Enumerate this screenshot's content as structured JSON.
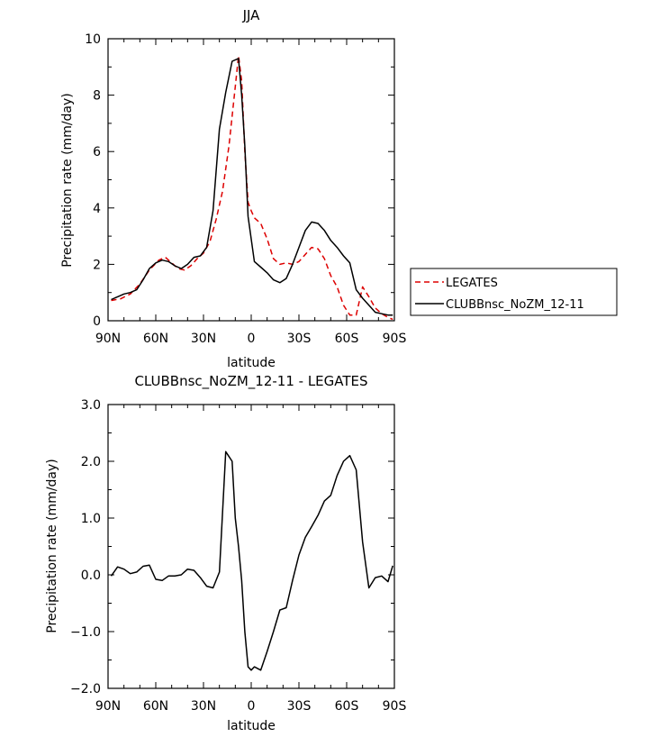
{
  "chart_data": [
    {
      "type": "line",
      "title": "JJA",
      "xlabel": "latitude",
      "ylabel": "Precipitation rate (mm/day)",
      "xlim": [
        90,
        -90
      ],
      "ylim": [
        0,
        10
      ],
      "xticks": [
        90,
        60,
        30,
        0,
        -30,
        -60,
        -90
      ],
      "xtick_labels": [
        "90N",
        "60N",
        "30N",
        "0",
        "30S",
        "60S",
        "90S"
      ],
      "yticks": [
        0,
        2,
        4,
        6,
        8,
        10
      ],
      "ytick_labels": [
        "0",
        "2",
        "4",
        "6",
        "8",
        "10"
      ],
      "legend_position": "right",
      "series": [
        {
          "name": "LEGATES",
          "color": "#dd0000",
          "dash": "dashed",
          "x": [
            88,
            82,
            76,
            70,
            64,
            58,
            54,
            50,
            46,
            42,
            38,
            34,
            30,
            26,
            22,
            18,
            14,
            10,
            8,
            6,
            4,
            2,
            0,
            -2,
            -6,
            -10,
            -14,
            -18,
            -22,
            -26,
            -30,
            -34,
            -38,
            -42,
            -46,
            -50,
            -54,
            -58,
            -62,
            -66,
            -70,
            -74,
            -78,
            -82,
            -86,
            -89
          ],
          "y": [
            0.72,
            0.78,
            0.95,
            1.3,
            1.8,
            2.15,
            2.25,
            2.05,
            1.85,
            1.8,
            1.95,
            2.2,
            2.4,
            2.8,
            3.6,
            4.6,
            6.2,
            8.3,
            9.4,
            8.5,
            6.0,
            4.2,
            3.9,
            3.65,
            3.45,
            2.9,
            2.2,
            2.0,
            2.05,
            2.0,
            2.1,
            2.35,
            2.6,
            2.55,
            2.2,
            1.6,
            1.2,
            0.55,
            0.2,
            0.2,
            1.2,
            0.85,
            0.45,
            0.25,
            0.12,
            0.05
          ]
        },
        {
          "name": "CLUBBnsc_NoZM_12-11",
          "color": "#000000",
          "dash": "solid",
          "x": [
            88,
            84,
            80,
            76,
            72,
            68,
            64,
            60,
            56,
            52,
            48,
            44,
            40,
            36,
            32,
            28,
            24,
            20,
            16,
            12,
            8,
            6,
            4,
            2,
            -2,
            -6,
            -10,
            -14,
            -18,
            -22,
            -26,
            -30,
            -34,
            -38,
            -42,
            -46,
            -50,
            -54,
            -58,
            -62,
            -66,
            -70,
            -74,
            -78,
            -82,
            -86,
            -89
          ],
          "y": [
            0.75,
            0.85,
            0.95,
            1.0,
            1.1,
            1.45,
            1.85,
            2.05,
            2.15,
            2.1,
            1.95,
            1.85,
            2.0,
            2.25,
            2.3,
            2.6,
            3.9,
            6.8,
            8.1,
            9.2,
            9.3,
            8.0,
            6.2,
            3.7,
            2.1,
            1.9,
            1.7,
            1.45,
            1.35,
            1.5,
            2.0,
            2.6,
            3.2,
            3.5,
            3.45,
            3.2,
            2.85,
            2.6,
            2.3,
            2.05,
            1.1,
            0.8,
            0.55,
            0.3,
            0.25,
            0.2,
            0.2
          ]
        }
      ]
    },
    {
      "type": "line",
      "title": "CLUBBnsc_NoZM_12-11 - LEGATES",
      "xlabel": "latitude",
      "ylabel": "Precipitation rate (mm/day)",
      "xlim": [
        90,
        -90
      ],
      "ylim": [
        -2,
        3
      ],
      "xticks": [
        90,
        60,
        30,
        0,
        -30,
        -60,
        -90
      ],
      "xtick_labels": [
        "90N",
        "60N",
        "30N",
        "0",
        "30S",
        "60S",
        "90S"
      ],
      "yticks": [
        -2,
        -1,
        0,
        1,
        2,
        3
      ],
      "ytick_labels": [
        "−2.0",
        "−1.0",
        "0.0",
        "1.0",
        "2.0",
        "3.0"
      ],
      "series": [
        {
          "name": "",
          "color": "#000000",
          "dash": "solid",
          "x": [
            88,
            84,
            80,
            76,
            72,
            68,
            64,
            60,
            56,
            52,
            48,
            44,
            40,
            36,
            32,
            28,
            24,
            20,
            16,
            12,
            10,
            8,
            6,
            4,
            2,
            0,
            -2,
            -6,
            -10,
            -14,
            -18,
            -22,
            -26,
            -30,
            -34,
            -38,
            -42,
            -46,
            -50,
            -54,
            -58,
            -62,
            -66,
            -70,
            -74,
            -78,
            -82,
            -86,
            -89
          ],
          "y": [
            -0.02,
            0.14,
            0.1,
            0.02,
            0.05,
            0.15,
            0.17,
            -0.08,
            -0.1,
            -0.02,
            -0.02,
            0.0,
            0.1,
            0.08,
            -0.05,
            -0.2,
            -0.23,
            0.05,
            2.17,
            2.0,
            1.0,
            0.5,
            -0.1,
            -1.0,
            -1.62,
            -1.68,
            -1.62,
            -1.68,
            -1.35,
            -1.0,
            -0.62,
            -0.58,
            -0.1,
            0.35,
            0.66,
            0.85,
            1.05,
            1.3,
            1.4,
            1.75,
            2.0,
            2.1,
            1.85,
            0.58,
            -0.23,
            -0.05,
            -0.02,
            -0.12,
            0.16
          ]
        }
      ]
    }
  ]
}
